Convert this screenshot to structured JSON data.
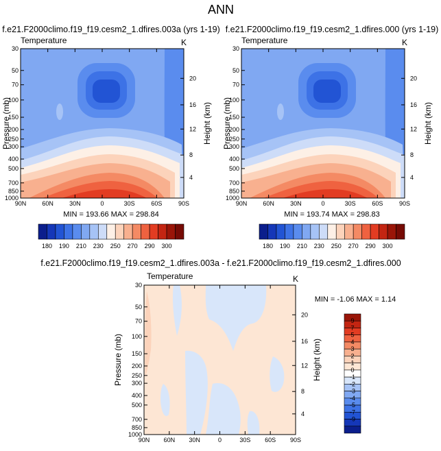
{
  "figure": {
    "title": "ANN"
  },
  "colors": {
    "background": "#ffffff",
    "axis": "#000000"
  },
  "chart_data": [
    {
      "type": "heatmap",
      "panel": "top-left",
      "title": "f.e21.F2000climo.f19_f19.cesm2_1.dfires.003a (yrs 1-19)",
      "variable_label": "Temperature",
      "units": "K",
      "ylabel": "Pressure (mb)",
      "y2label": "Height (km)",
      "x_ticks": [
        "90N",
        "60N",
        "30N",
        "0",
        "30S",
        "60S",
        "90S"
      ],
      "y_ticks": [
        "30",
        "50",
        "70",
        "100",
        "150",
        "200",
        "250",
        "300",
        "400",
        "500",
        "700",
        "850",
        "1000"
      ],
      "y2_ticks": [
        "4",
        "8",
        "12",
        "16",
        "20"
      ],
      "stats_text": "MIN = 193.66   MAX = 298.84",
      "min": 193.66,
      "max": 298.84,
      "colorbar_labels": [
        "180",
        "190",
        "210",
        "230",
        "250",
        "270",
        "290",
        "300"
      ],
      "colorbar_colors": [
        "#0b1e8c",
        "#1537b8",
        "#2254d4",
        "#3d72e6",
        "#5a8cee",
        "#80a8f2",
        "#a6c3f6",
        "#cddcf8",
        "#fdf0e6",
        "#fcd3bb",
        "#f8b08f",
        "#f48a64",
        "#ef6240",
        "#e23c22",
        "#c32512",
        "#9a1508",
        "#760b05"
      ]
    },
    {
      "type": "heatmap",
      "panel": "top-right",
      "title": "f.e21.F2000climo.f19_f19.cesm2_1.dfires.000 (yrs 1-19)",
      "variable_label": "Temperature",
      "units": "K",
      "ylabel": "Pressure (mb)",
      "y2label": "Height (km)",
      "x_ticks": [
        "90N",
        "60N",
        "30N",
        "0",
        "30S",
        "60S",
        "90S"
      ],
      "y_ticks": [
        "30",
        "50",
        "70",
        "100",
        "150",
        "200",
        "250",
        "300",
        "400",
        "500",
        "700",
        "850",
        "1000"
      ],
      "y2_ticks": [
        "4",
        "8",
        "12",
        "16",
        "20"
      ],
      "stats_text": "MIN = 193.74   MAX = 298.83",
      "min": 193.74,
      "max": 298.83,
      "colorbar_labels": [
        "180",
        "190",
        "210",
        "230",
        "250",
        "270",
        "290",
        "300"
      ],
      "colorbar_colors": [
        "#0b1e8c",
        "#1537b8",
        "#2254d4",
        "#3d72e6",
        "#5a8cee",
        "#80a8f2",
        "#a6c3f6",
        "#cddcf8",
        "#fdf0e6",
        "#fcd3bb",
        "#f8b08f",
        "#f48a64",
        "#ef6240",
        "#e23c22",
        "#c32512",
        "#9a1508",
        "#760b05"
      ]
    },
    {
      "type": "heatmap",
      "panel": "bottom",
      "title": "f.e21.F2000climo.f19_f19.cesm2_1.dfires.003a - f.e21.F2000climo.f19_f19.cesm2_1.dfires.000",
      "variable_label": "Temperature",
      "units": "K",
      "ylabel": "Pressure (mb)",
      "y2label": "Height (km)",
      "x_ticks": [
        "90N",
        "60N",
        "30N",
        "0",
        "30S",
        "60S",
        "90S"
      ],
      "y_ticks": [
        "30",
        "50",
        "70",
        "100",
        "150",
        "200",
        "250",
        "300",
        "400",
        "500",
        "700",
        "850",
        "1000"
      ],
      "y2_ticks": [
        "4",
        "8",
        "12",
        "16",
        "20"
      ],
      "stats_text": "MIN = -1.06   MAX =   1.14",
      "min": -1.06,
      "max": 1.14,
      "colorbar_labels": [
        "9",
        "7",
        "5",
        "4",
        "3",
        "2",
        "1",
        "0",
        "-1",
        "-2",
        "-3",
        "-4",
        "-5",
        "-7",
        "-9"
      ],
      "colorbar_colors": [
        "#9a1508",
        "#c32512",
        "#e23c22",
        "#ef6240",
        "#f48a64",
        "#f8b08f",
        "#fcd3bb",
        "#fde6d4",
        "#ffffff",
        "#d8e6fa",
        "#a6c3f6",
        "#80a8f2",
        "#5a8cee",
        "#3d72e6",
        "#2254d4",
        "#1537b8",
        "#0b1e8c"
      ]
    }
  ]
}
